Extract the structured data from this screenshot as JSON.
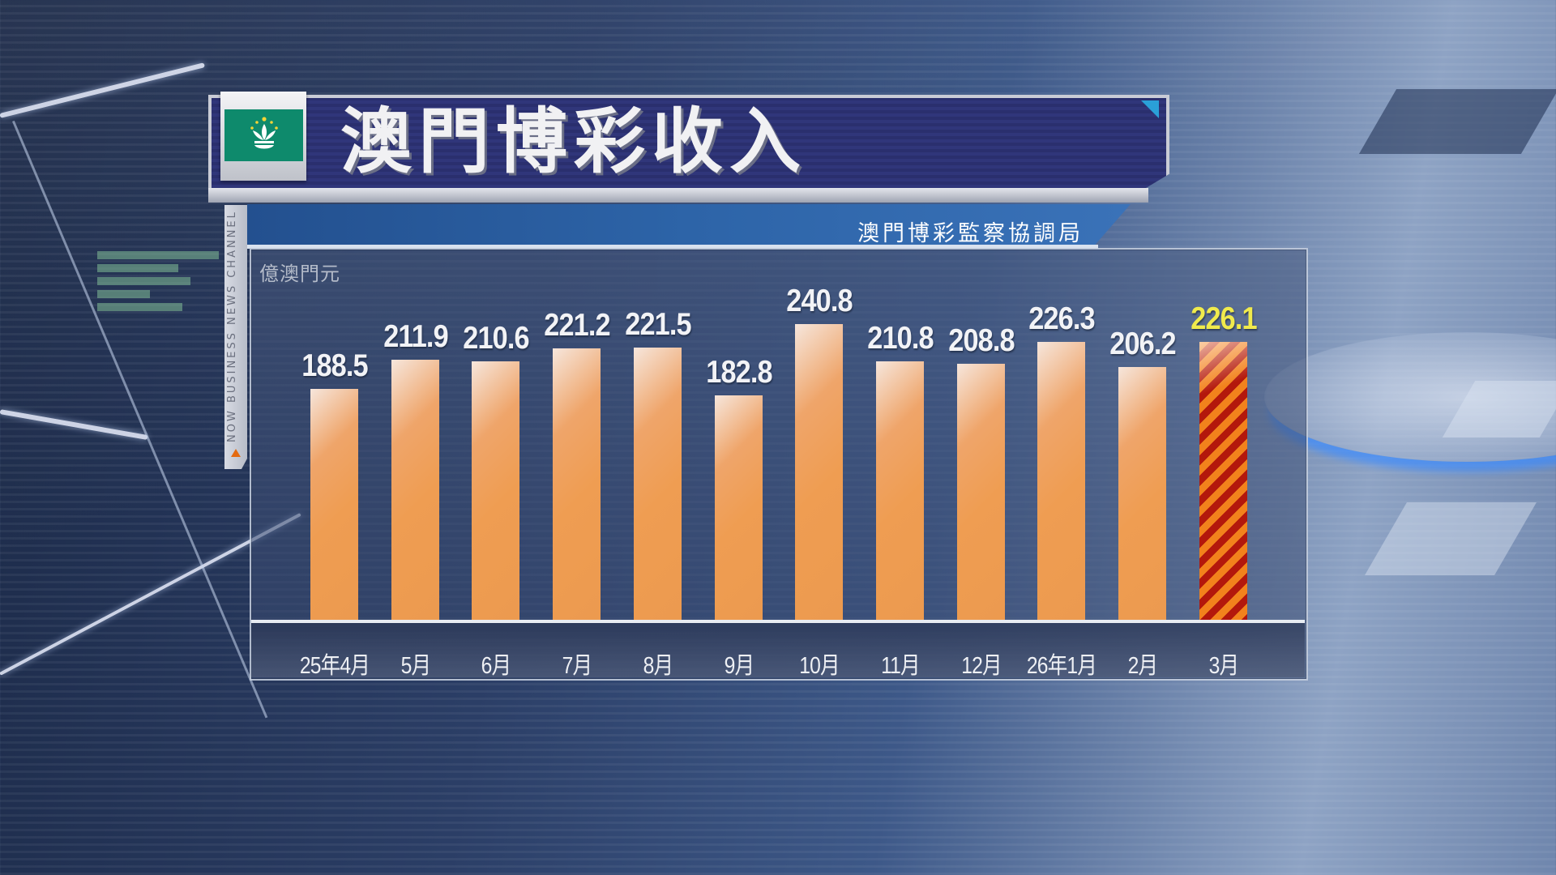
{
  "header": {
    "title": "澳門博彩收入",
    "source": "澳門博彩監察協調局",
    "flag": "macau-flag-icon",
    "channel_label": "NOW BUSINESS NEWS CHANNEL"
  },
  "colors": {
    "bar": "#EF9D52",
    "highlight_bar_stripe_a": "#F2821C",
    "highlight_bar_stripe_b": "#B3180C",
    "highlight_value": "#F0EA4C",
    "title_bg": "#2A2F6E",
    "source_bg": "#2D64A8"
  },
  "chart_data": {
    "type": "bar",
    "title": "澳門博彩收入",
    "subtitle": "澳門博彩監察協調局",
    "ylabel": "億澳門元",
    "xlabel": "",
    "categories": [
      "25年4月",
      "5月",
      "6月",
      "7月",
      "8月",
      "9月",
      "10月",
      "11月",
      "12月",
      "26年1月",
      "2月",
      "3月"
    ],
    "values": [
      188.5,
      211.9,
      210.6,
      221.2,
      221.5,
      182.8,
      240.8,
      210.8,
      208.8,
      226.3,
      206.2,
      226.1
    ],
    "labels": [
      "188.5",
      "211.9",
      "210.6",
      "221.2",
      "221.5",
      "182.8",
      "240.8",
      "210.8",
      "208.8",
      "226.3",
      "206.2",
      "226.1"
    ],
    "highlight_index": 11,
    "ylim": [
      0,
      260
    ],
    "grid": false,
    "legend": null
  }
}
